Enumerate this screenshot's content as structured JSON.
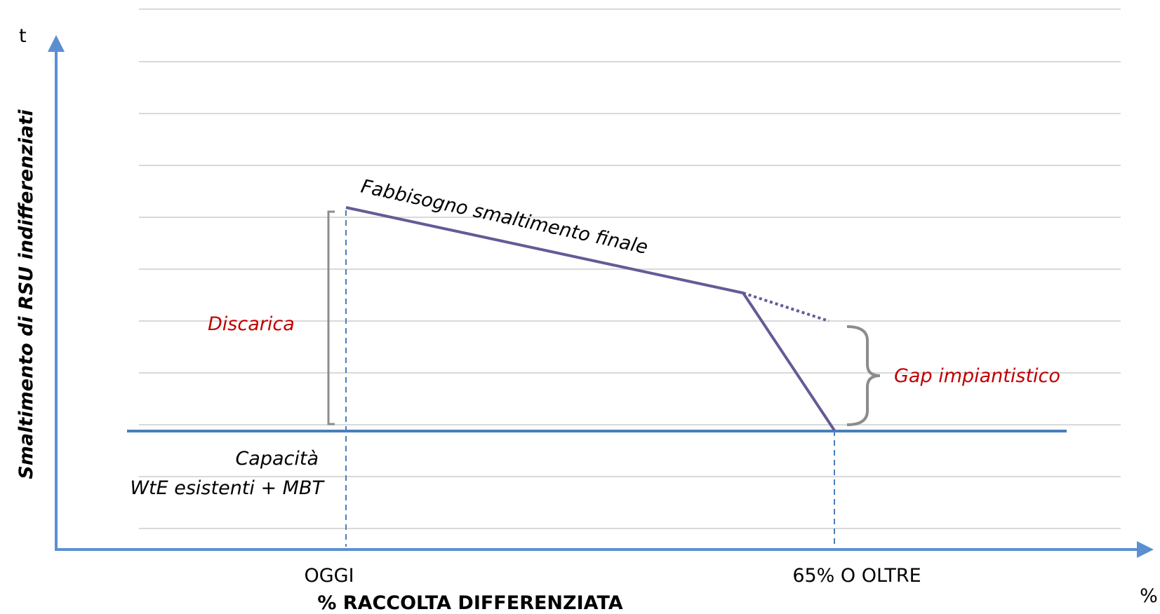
{
  "y_axis": {
    "unit": "t",
    "title": "Smaltimento  di RSU indifferenziati"
  },
  "x_axis": {
    "unit": "%",
    "title": "% RACCOLTA DIFFERENZIATA",
    "tick_left": "OGGI",
    "tick_right": "65% O OLTRE"
  },
  "annotations": {
    "demand_line": "Fabbisogno smaltimento finale",
    "landfill": "Discarica",
    "gap": "Gap impiantistico",
    "capacity_line1": "Capacità",
    "capacity_line2": "WtE esistenti + MBT"
  },
  "colors": {
    "axis": "#5b8fd0",
    "capacity_line": "#4a7ebb",
    "demand_line": "#665a96",
    "grid": "#d9d9d9",
    "bracket": "#8c8c8c",
    "annotation_red": "#c00000"
  }
}
